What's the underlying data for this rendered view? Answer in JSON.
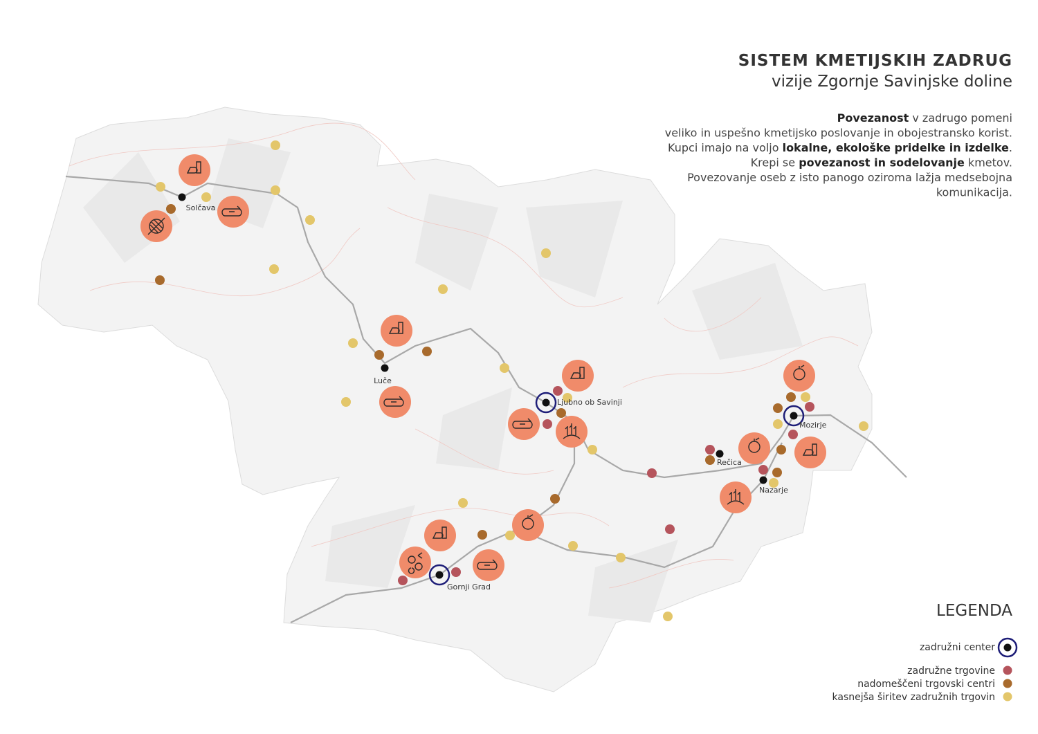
{
  "header": {
    "title": "SISTEM KMETIJSKIH ZADRUG",
    "subtitle": "vizije Zgornje Savinjske doline"
  },
  "description": {
    "lines": [
      [
        {
          "text": "Povezanost",
          "bold": true
        },
        {
          "text": " v zadrugo pomeni",
          "bold": false
        }
      ],
      [
        {
          "text": "veliko in uspešno kmetijsko poslovanje in obojestransko korist.",
          "bold": false
        }
      ],
      [
        {
          "text": "Kupci imajo na voljo ",
          "bold": false
        },
        {
          "text": "lokalne, ekološke pridelke in izdelke",
          "bold": true
        },
        {
          "text": ".",
          "bold": false
        }
      ],
      [
        {
          "text": "Krepi se ",
          "bold": false
        },
        {
          "text": "povezanost in sodelovanje",
          "bold": true
        },
        {
          "text": " kmetov.",
          "bold": false
        }
      ],
      [
        {
          "text": "Povezovanje oseb z isto panogo oziroma lažja medsebojna",
          "bold": false
        }
      ],
      [
        {
          "text": "komunikacija.",
          "bold": false
        }
      ]
    ]
  },
  "places": [
    "Solčava",
    "Luče",
    "Ljubno ob Savinji",
    "Gornji Grad",
    "Mozirje",
    "Rečica",
    "Nazarje"
  ],
  "legend": {
    "title": "LEGENDA",
    "items": [
      {
        "label": "zadružni center",
        "color": "#1e1e78"
      },
      {
        "label": "zadružne trgovine",
        "color": "#b5545c"
      },
      {
        "label": "nadomeščeni trgovski centri",
        "color": "#a86a2c"
      },
      {
        "label": "kasnejša širitev zadružnih trgovin",
        "color": "#e3c66a"
      }
    ]
  }
}
